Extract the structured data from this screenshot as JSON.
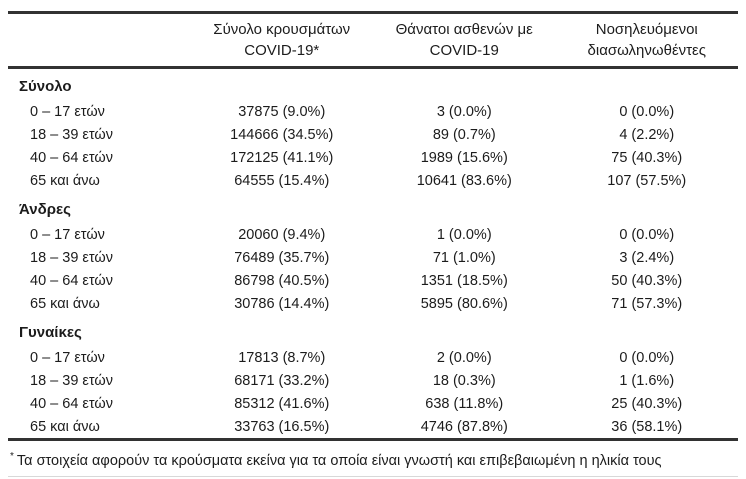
{
  "table": {
    "header": {
      "corner": "",
      "cases": [
        "Σύνολο κρουσμάτων",
        "COVID-19*"
      ],
      "deaths": [
        "Θάνατοι ασθενών με",
        "COVID-19"
      ],
      "intubated": [
        "Νοσηλευόμενοι",
        "διασωληνωθέντες"
      ]
    },
    "sections": [
      {
        "label": "Σύνολο",
        "rows": [
          {
            "label": "0 – 17 ετών",
            "cases": "37875 (9.0%)",
            "deaths": "3 (0.0%)",
            "intubated": "0 (0.0%)"
          },
          {
            "label": "18 – 39 ετών",
            "cases": "144666 (34.5%)",
            "deaths": "89 (0.7%)",
            "intubated": "4 (2.2%)"
          },
          {
            "label": "40 – 64 ετών",
            "cases": "172125 (41.1%)",
            "deaths": "1989 (15.6%)",
            "intubated": "75 (40.3%)"
          },
          {
            "label": "65 και άνω",
            "cases": "64555 (15.4%)",
            "deaths": "10641 (83.6%)",
            "intubated": "107 (57.5%)"
          }
        ]
      },
      {
        "label": "Άνδρες",
        "rows": [
          {
            "label": "0 – 17 ετών",
            "cases": "20060 (9.4%)",
            "deaths": "1 (0.0%)",
            "intubated": "0 (0.0%)"
          },
          {
            "label": "18 – 39 ετών",
            "cases": "76489 (35.7%)",
            "deaths": "71 (1.0%)",
            "intubated": "3 (2.4%)"
          },
          {
            "label": "40 – 64 ετών",
            "cases": "86798 (40.5%)",
            "deaths": "1351 (18.5%)",
            "intubated": "50 (40.3%)"
          },
          {
            "label": "65 και άνω",
            "cases": "30786 (14.4%)",
            "deaths": "5895 (80.6%)",
            "intubated": "71 (57.3%)"
          }
        ]
      },
      {
        "label": "Γυναίκες",
        "rows": [
          {
            "label": "0 – 17 ετών",
            "cases": "17813 (8.7%)",
            "deaths": "2 (0.0%)",
            "intubated": "0 (0.0%)"
          },
          {
            "label": "18 – 39 ετών",
            "cases": "68171 (33.2%)",
            "deaths": "18 (0.3%)",
            "intubated": "1 (1.6%)"
          },
          {
            "label": "40 – 64 ετών",
            "cases": "85312 (41.6%)",
            "deaths": "638 (11.8%)",
            "intubated": "25 (40.3%)"
          },
          {
            "label": "65 και άνω",
            "cases": "33763 (16.5%)",
            "deaths": "4746 (87.8%)",
            "intubated": "36 (58.1%)"
          }
        ]
      }
    ],
    "footnote_marker": "*",
    "footnote_text": "Τα στοιχεία αφορούν τα κρούσματα εκείνα για τα οποία είναι γνωστή και επιβεβαιωμένη η ηλικία τους"
  },
  "colors": {
    "rule": "#323232",
    "text": "#1c1c1c",
    "background": "#ffffff"
  }
}
